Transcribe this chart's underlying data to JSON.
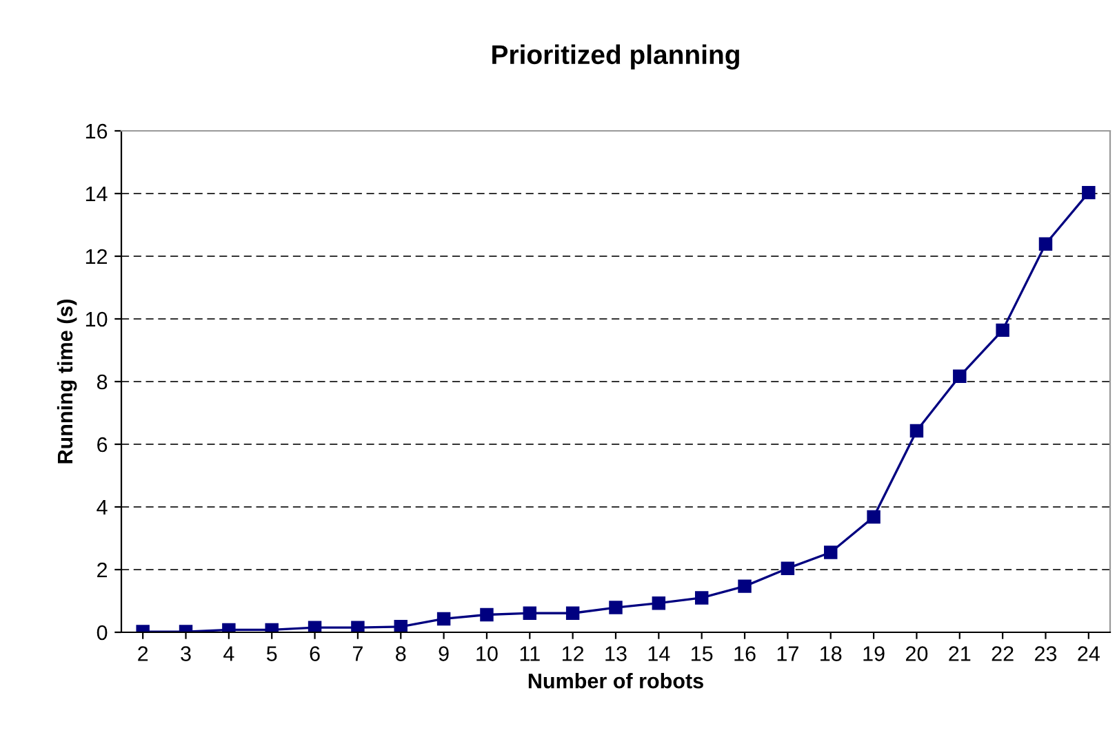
{
  "chart_data": {
    "type": "line",
    "title": "Prioritized planning",
    "xlabel": "Number of robots",
    "ylabel": "Running time (s)",
    "categories": [
      "2",
      "3",
      "4",
      "5",
      "6",
      "7",
      "8",
      "9",
      "10",
      "11",
      "12",
      "13",
      "14",
      "15",
      "16",
      "17",
      "18",
      "19",
      "20",
      "21",
      "22",
      "23",
      "24"
    ],
    "series": [
      {
        "color": "#000080",
        "values": [
          0.02,
          0.02,
          0.08,
          0.08,
          0.15,
          0.15,
          0.18,
          0.43,
          0.56,
          0.61,
          0.61,
          0.79,
          0.93,
          1.1,
          1.47,
          2.04,
          2.55,
          3.68,
          6.43,
          8.17,
          9.64,
          12.39,
          14.03
        ]
      }
    ],
    "ylim": [
      0,
      16
    ],
    "yticks": [
      0,
      2,
      4,
      6,
      8,
      10,
      12,
      14,
      16
    ],
    "grid": "y",
    "marker": "square",
    "line_style": "solid",
    "legend": false
  }
}
